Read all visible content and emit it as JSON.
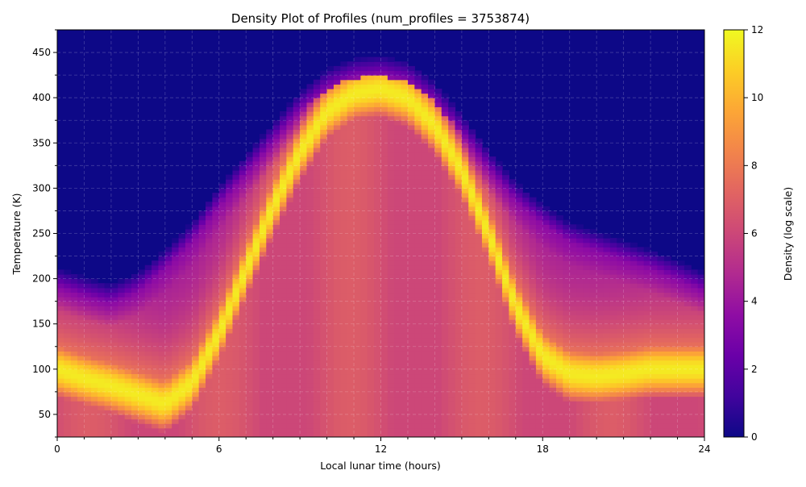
{
  "chart_data": {
    "type": "heatmap",
    "title": "Density Plot of Profiles (num_profiles = 3753874)",
    "xlabel": "Local lunar time (hours)",
    "ylabel": "Temperature (K)",
    "xlim": [
      0,
      24
    ],
    "ylim": [
      25,
      475
    ],
    "x_ticks": [
      0,
      6,
      12,
      18,
      24
    ],
    "x_minor_step": 1,
    "y_ticks": [
      50,
      100,
      150,
      200,
      250,
      300,
      350,
      400,
      450
    ],
    "y_minor_step": 25,
    "grid": true,
    "colormap": "plasma",
    "colorbar": {
      "label": "Density (log scale)",
      "range": [
        0,
        12
      ],
      "ticks": [
        0,
        2,
        4,
        6,
        8,
        10,
        12
      ]
    },
    "ridge_profile": {
      "local_time_hours": [
        0,
        1,
        2,
        3,
        4,
        5,
        6,
        7,
        8,
        9,
        10,
        11,
        12,
        13,
        14,
        15,
        16,
        17,
        18,
        19,
        20,
        21,
        22,
        23,
        24
      ],
      "peak_temperature_K": [
        100,
        90,
        82,
        72,
        62,
        85,
        140,
        210,
        280,
        340,
        385,
        405,
        410,
        400,
        370,
        320,
        250,
        170,
        115,
        95,
        92,
        95,
        100,
        100,
        100
      ],
      "upper_edge_temperature_K": [
        190,
        180,
        172,
        185,
        210,
        240,
        280,
        315,
        350,
        385,
        410,
        422,
        425,
        418,
        395,
        360,
        320,
        285,
        260,
        240,
        230,
        220,
        210,
        198,
        185
      ]
    }
  }
}
